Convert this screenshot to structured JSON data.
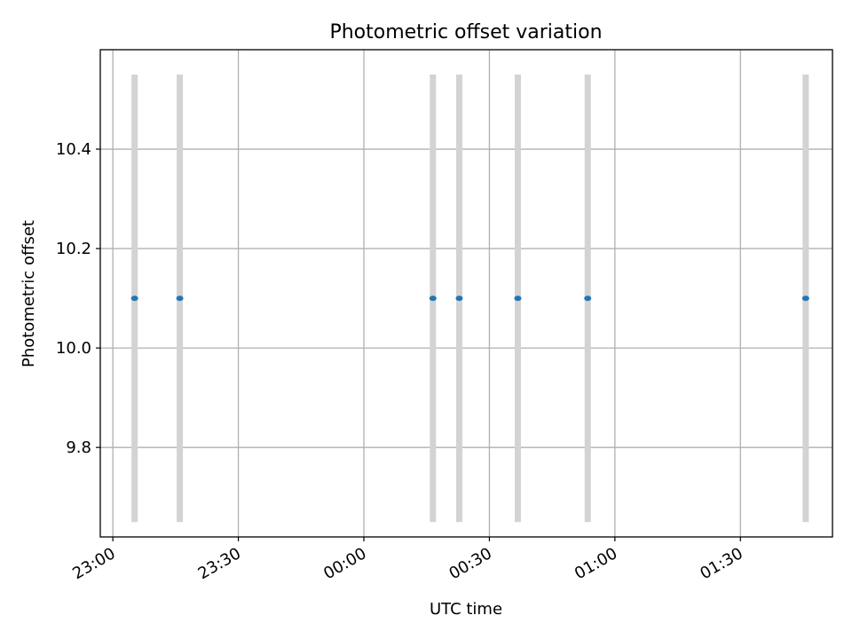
{
  "chart_data": {
    "type": "scatter",
    "title": "Photometric offset variation",
    "xlabel": "UTC time",
    "ylabel": "Photometric offset",
    "x_ticks": [
      {
        "value": 0,
        "label": "23:00"
      },
      {
        "value": 30,
        "label": "23:30"
      },
      {
        "value": 60,
        "label": "00:00"
      },
      {
        "value": 90,
        "label": "00:30"
      },
      {
        "value": 120,
        "label": "01:00"
      },
      {
        "value": 150,
        "label": "01:30"
      }
    ],
    "y_ticks": [
      9.8,
      10.0,
      10.2,
      10.4
    ],
    "xlim": [
      -3,
      172
    ],
    "ylim": [
      9.62,
      10.6
    ],
    "grid": true,
    "series": [
      {
        "color": "#1f77b4",
        "error_color": "#d3d3d3",
        "points": [
          {
            "x": 5.2,
            "y": 10.1,
            "ylow": 9.65,
            "yhigh": 10.55
          },
          {
            "x": 16.0,
            "y": 10.1,
            "ylow": 9.65,
            "yhigh": 10.55
          },
          {
            "x": 76.5,
            "y": 10.1,
            "ylow": 9.65,
            "yhigh": 10.55
          },
          {
            "x": 82.8,
            "y": 10.1,
            "ylow": 9.65,
            "yhigh": 10.55
          },
          {
            "x": 96.8,
            "y": 10.1,
            "ylow": 9.65,
            "yhigh": 10.55
          },
          {
            "x": 113.5,
            "y": 10.1,
            "ylow": 9.65,
            "yhigh": 10.55
          },
          {
            "x": 165.6,
            "y": 10.1,
            "ylow": 9.65,
            "yhigh": 10.55
          }
        ]
      }
    ]
  }
}
